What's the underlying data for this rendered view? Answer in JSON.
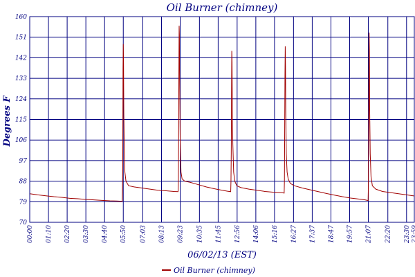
{
  "chart_data": {
    "type": "line",
    "title": "Oil Burner (chimney)",
    "xlabel": "06/02/13 (EST)",
    "ylabel": "Degrees F",
    "ylim": [
      70,
      160
    ],
    "y_ticks": [
      70,
      79,
      88,
      97,
      106,
      115,
      124,
      133,
      142,
      151,
      160
    ],
    "x_ticks": [
      "00:00",
      "01:10",
      "02:20",
      "03:30",
      "04:40",
      "05:50",
      "07:03",
      "08:13",
      "09:23",
      "10:35",
      "11:45",
      "12:56",
      "14:06",
      "15:16",
      "16:27",
      "17:37",
      "18:47",
      "19:57",
      "21:07",
      "22:20",
      "23:30",
      "23:59"
    ],
    "grid": true,
    "legend_position": "bottom",
    "colors": {
      "series": "#a00000",
      "grid": "#000080",
      "text": "#000080"
    },
    "series": [
      {
        "name": "Oil Burner (chimney)",
        "points": [
          [
            0,
            82.5
          ],
          [
            30,
            82.0
          ],
          [
            60,
            81.6
          ],
          [
            90,
            81.2
          ],
          [
            120,
            80.9
          ],
          [
            150,
            80.5
          ],
          [
            180,
            80.3
          ],
          [
            210,
            80.0
          ],
          [
            240,
            79.8
          ],
          [
            270,
            79.6
          ],
          [
            300,
            79.4
          ],
          [
            325,
            79.3
          ],
          [
            346,
            79.2
          ],
          [
            347,
            85
          ],
          [
            348,
            95
          ],
          [
            349,
            137
          ],
          [
            350,
            148
          ],
          [
            351,
            140
          ],
          [
            352,
            118
          ],
          [
            354,
            100
          ],
          [
            356,
            92
          ],
          [
            360,
            88
          ],
          [
            370,
            86
          ],
          [
            390,
            85.5
          ],
          [
            420,
            85.0
          ],
          [
            450,
            84.5
          ],
          [
            480,
            84.0
          ],
          [
            510,
            83.8
          ],
          [
            540,
            83.5
          ],
          [
            555,
            83.4
          ],
          [
            556,
            88
          ],
          [
            557,
            105
          ],
          [
            558,
            135
          ],
          [
            559,
            156
          ],
          [
            560,
            152
          ],
          [
            561,
            130
          ],
          [
            563,
            105
          ],
          [
            566,
            92
          ],
          [
            570,
            89
          ],
          [
            580,
            88
          ],
          [
            600,
            87.5
          ],
          [
            630,
            86.5
          ],
          [
            660,
            85.5
          ],
          [
            690,
            84.7
          ],
          [
            720,
            84.0
          ],
          [
            740,
            83.6
          ],
          [
            752,
            83.4
          ],
          [
            753,
            88
          ],
          [
            754,
            100
          ],
          [
            755,
            125
          ],
          [
            756,
            145
          ],
          [
            757,
            140
          ],
          [
            758,
            120
          ],
          [
            760,
            104
          ],
          [
            763,
            92
          ],
          [
            767,
            88
          ],
          [
            775,
            86
          ],
          [
            790,
            85.2
          ],
          [
            820,
            84.5
          ],
          [
            850,
            84.0
          ],
          [
            880,
            83.5
          ],
          [
            910,
            83.2
          ],
          [
            940,
            83.0
          ],
          [
            952,
            82.8
          ],
          [
            953,
            88
          ],
          [
            954,
            110
          ],
          [
            955,
            135
          ],
          [
            956,
            147
          ],
          [
            957,
            138
          ],
          [
            958,
            118
          ],
          [
            960,
            100
          ],
          [
            963,
            92
          ],
          [
            967,
            89
          ],
          [
            975,
            87
          ],
          [
            990,
            86
          ],
          [
            1020,
            85
          ],
          [
            1050,
            84.2
          ],
          [
            1080,
            83.4
          ],
          [
            1110,
            82.6
          ],
          [
            1140,
            81.9
          ],
          [
            1170,
            81.2
          ],
          [
            1200,
            80.6
          ],
          [
            1230,
            80.2
          ],
          [
            1255,
            79.8
          ],
          [
            1266,
            79.5
          ],
          [
            1267,
            85
          ],
          [
            1268,
            100
          ],
          [
            1269,
            130
          ],
          [
            1270,
            153
          ],
          [
            1271,
            145
          ],
          [
            1272,
            120
          ],
          [
            1274,
            100
          ],
          [
            1277,
            90
          ],
          [
            1282,
            86
          ],
          [
            1295,
            84.5
          ],
          [
            1320,
            83.5
          ],
          [
            1350,
            83.0
          ],
          [
            1380,
            82.5
          ],
          [
            1410,
            82.0
          ],
          [
            1439,
            81.5
          ]
        ]
      }
    ]
  }
}
